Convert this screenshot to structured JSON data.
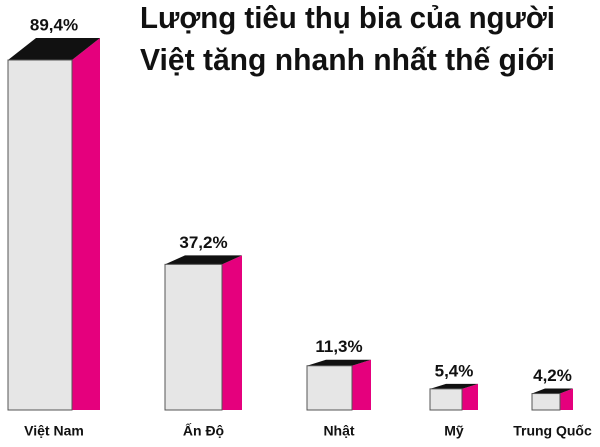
{
  "chart_data": {
    "type": "bar3d",
    "title": [
      "Lượng tiêu thụ bia của người",
      "Việt tăng nhanh nhất thế giới"
    ],
    "categories": [
      "Việt Nam",
      "Ấn Độ",
      "Nhật",
      "Mỹ",
      "Trung Quốc"
    ],
    "values": [
      89.4,
      37.2,
      11.3,
      5.4,
      4.2
    ],
    "value_labels": [
      "89,4%",
      "37,2%",
      "11,3%",
      "5,4%",
      "4,2%"
    ],
    "colors": {
      "front": "#e6e6e6",
      "side": "#e5007d",
      "top": "#111111"
    }
  }
}
